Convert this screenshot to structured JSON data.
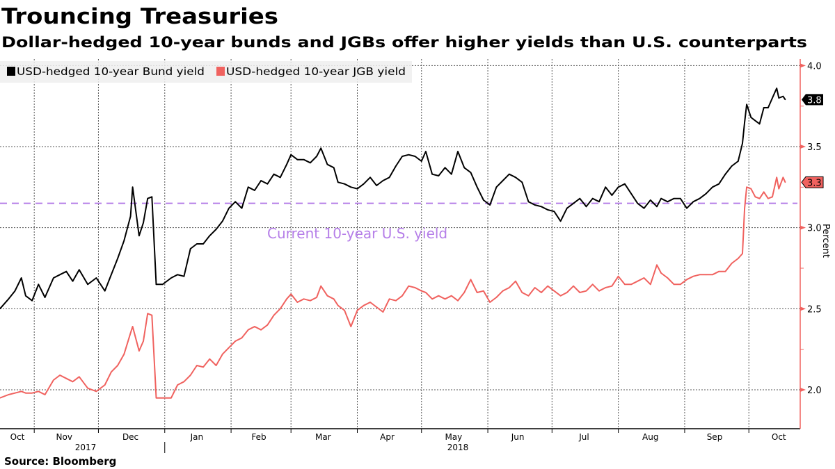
{
  "title": "Trouncing Treasuries",
  "subtitle": "Dollar-hedged 10-year bunds and JGBs offer higher yields than U.S. counterparts",
  "source": "Source: Bloomberg",
  "chart_data": {
    "type": "line",
    "title": "Trouncing Treasuries",
    "subtitle": "Dollar-hedged 10-year bunds and JGBs offer higher yields than U.S. counterparts",
    "ylabel": "Percent",
    "ylim": [
      1.76,
      4.04
    ],
    "xlim": [
      "2017-10-16",
      "2018-10-25"
    ],
    "y_axis_side": "right",
    "grid": true,
    "legend_placement": "top-left",
    "yticks": [
      "4.0",
      "3.5",
      "3.0",
      "2.5",
      "2.0"
    ],
    "x_month_labels": [
      "Oct",
      "Nov",
      "Dec",
      "Jan",
      "Feb",
      "Mar",
      "Apr",
      "May",
      "Jun",
      "Jul",
      "Aug",
      "Sep",
      "Oct"
    ],
    "x_year_labels": [
      "2017",
      "2018"
    ],
    "x": [
      "2017-10-16",
      "2017-10-20",
      "2017-10-23",
      "2017-10-26",
      "2017-10-28",
      "2017-10-31",
      "2017-11-03",
      "2017-11-06",
      "2017-11-10",
      "2017-11-13",
      "2017-11-16",
      "2017-11-19",
      "2017-11-22",
      "2017-11-26",
      "2017-11-30",
      "2017-12-04",
      "2017-12-07",
      "2017-12-10",
      "2017-12-13",
      "2017-12-16",
      "2017-12-17",
      "2017-12-20",
      "2017-12-22",
      "2017-12-24",
      "2017-12-26",
      "2017-12-28",
      "2017-12-31",
      "2018-01-04",
      "2018-01-07",
      "2018-01-10",
      "2018-01-13",
      "2018-01-16",
      "2018-01-19",
      "2018-01-22",
      "2018-01-25",
      "2018-01-28",
      "2018-01-31",
      "2018-02-03",
      "2018-02-06",
      "2018-02-09",
      "2018-02-12",
      "2018-02-15",
      "2018-02-18",
      "2018-02-21",
      "2018-02-24",
      "2018-02-27",
      "2018-03-01",
      "2018-03-04",
      "2018-03-07",
      "2018-03-10",
      "2018-03-13",
      "2018-03-15",
      "2018-03-18",
      "2018-03-21",
      "2018-03-23",
      "2018-03-26",
      "2018-03-29",
      "2018-04-01",
      "2018-04-04",
      "2018-04-07",
      "2018-04-10",
      "2018-04-13",
      "2018-04-16",
      "2018-04-19",
      "2018-04-22",
      "2018-04-25",
      "2018-04-28",
      "2018-05-01",
      "2018-05-03",
      "2018-05-06",
      "2018-05-09",
      "2018-05-12",
      "2018-05-15",
      "2018-05-18",
      "2018-05-21",
      "2018-05-24",
      "2018-05-27",
      "2018-05-30",
      "2018-06-02",
      "2018-06-05",
      "2018-06-08",
      "2018-06-11",
      "2018-06-14",
      "2018-06-17",
      "2018-06-20",
      "2018-06-23",
      "2018-06-26",
      "2018-06-29",
      "2018-07-02",
      "2018-07-05",
      "2018-07-08",
      "2018-07-11",
      "2018-07-14",
      "2018-07-17",
      "2018-07-20",
      "2018-07-23",
      "2018-07-26",
      "2018-07-29",
      "2018-08-01",
      "2018-08-04",
      "2018-08-07",
      "2018-08-10",
      "2018-08-13",
      "2018-08-16",
      "2018-08-19",
      "2018-08-21",
      "2018-08-24",
      "2018-08-27",
      "2018-08-30",
      "2018-09-02",
      "2018-09-05",
      "2018-09-08",
      "2018-09-11",
      "2018-09-14",
      "2018-09-17",
      "2018-09-20",
      "2018-09-23",
      "2018-09-26",
      "2018-09-28",
      "2018-09-29",
      "2018-09-30",
      "2018-10-02",
      "2018-10-04",
      "2018-10-06",
      "2018-10-08",
      "2018-10-10",
      "2018-10-12",
      "2018-10-14",
      "2018-10-15",
      "2018-10-17",
      "2018-10-18"
    ],
    "series": [
      {
        "name": "USD-hedged 10-year Bund yield",
        "color": "#000000",
        "last_label": "3.8",
        "values": [
          2.5,
          2.56,
          2.61,
          2.69,
          2.58,
          2.55,
          2.65,
          2.57,
          2.69,
          2.71,
          2.73,
          2.67,
          2.74,
          2.65,
          2.69,
          2.61,
          2.71,
          2.81,
          2.92,
          3.07,
          3.25,
          2.95,
          3.03,
          3.18,
          3.19,
          2.65,
          2.65,
          2.69,
          2.71,
          2.7,
          2.87,
          2.9,
          2.9,
          2.95,
          2.99,
          3.04,
          3.12,
          3.16,
          3.12,
          3.25,
          3.23,
          3.29,
          3.27,
          3.33,
          3.31,
          3.39,
          3.45,
          3.42,
          3.42,
          3.4,
          3.44,
          3.49,
          3.39,
          3.37,
          3.28,
          3.27,
          3.25,
          3.24,
          3.27,
          3.31,
          3.26,
          3.29,
          3.31,
          3.38,
          3.44,
          3.45,
          3.44,
          3.41,
          3.47,
          3.33,
          3.32,
          3.37,
          3.33,
          3.47,
          3.37,
          3.34,
          3.25,
          3.17,
          3.14,
          3.25,
          3.29,
          3.33,
          3.31,
          3.28,
          3.16,
          3.14,
          3.13,
          3.11,
          3.1,
          3.04,
          3.12,
          3.15,
          3.18,
          3.13,
          3.18,
          3.16,
          3.25,
          3.2,
          3.25,
          3.27,
          3.21,
          3.15,
          3.12,
          3.17,
          3.13,
          3.18,
          3.16,
          3.18,
          3.18,
          3.12,
          3.16,
          3.18,
          3.21,
          3.25,
          3.27,
          3.33,
          3.38,
          3.41,
          3.52,
          3.65,
          3.76,
          3.68,
          3.66,
          3.64,
          3.74,
          3.74,
          3.8,
          3.86,
          3.8,
          3.81,
          3.79
        ]
      },
      {
        "name": "USD-hedged 10-year JGB yield",
        "color": "#f0625f",
        "last_label": "3.3",
        "values": [
          1.95,
          1.97,
          1.98,
          1.99,
          1.98,
          1.98,
          1.99,
          1.97,
          2.06,
          2.09,
          2.07,
          2.05,
          2.08,
          2.01,
          1.99,
          2.03,
          2.11,
          2.15,
          2.22,
          2.35,
          2.39,
          2.24,
          2.3,
          2.47,
          2.46,
          1.95,
          1.95,
          1.95,
          2.03,
          2.05,
          2.09,
          2.15,
          2.14,
          2.19,
          2.15,
          2.22,
          2.26,
          2.3,
          2.32,
          2.37,
          2.39,
          2.37,
          2.4,
          2.46,
          2.5,
          2.56,
          2.59,
          2.54,
          2.56,
          2.55,
          2.57,
          2.64,
          2.58,
          2.56,
          2.52,
          2.49,
          2.39,
          2.49,
          2.52,
          2.54,
          2.51,
          2.48,
          2.56,
          2.55,
          2.58,
          2.64,
          2.63,
          2.61,
          2.6,
          2.56,
          2.58,
          2.56,
          2.58,
          2.55,
          2.6,
          2.68,
          2.6,
          2.61,
          2.54,
          2.57,
          2.61,
          2.63,
          2.67,
          2.6,
          2.58,
          2.63,
          2.6,
          2.64,
          2.61,
          2.58,
          2.6,
          2.64,
          2.6,
          2.61,
          2.65,
          2.61,
          2.63,
          2.64,
          2.7,
          2.65,
          2.65,
          2.67,
          2.69,
          2.65,
          2.77,
          2.72,
          2.69,
          2.65,
          2.65,
          2.68,
          2.7,
          2.71,
          2.71,
          2.71,
          2.73,
          2.73,
          2.78,
          2.81,
          2.84,
          3.12,
          3.25,
          3.24,
          3.19,
          3.18,
          3.22,
          3.18,
          3.19,
          3.31,
          3.24,
          3.31,
          3.28
        ]
      }
    ],
    "reference_line": {
      "label": "Current 10-year U.S. yield",
      "value": 3.15,
      "color": "#b57ee8",
      "style": "dashed"
    }
  }
}
